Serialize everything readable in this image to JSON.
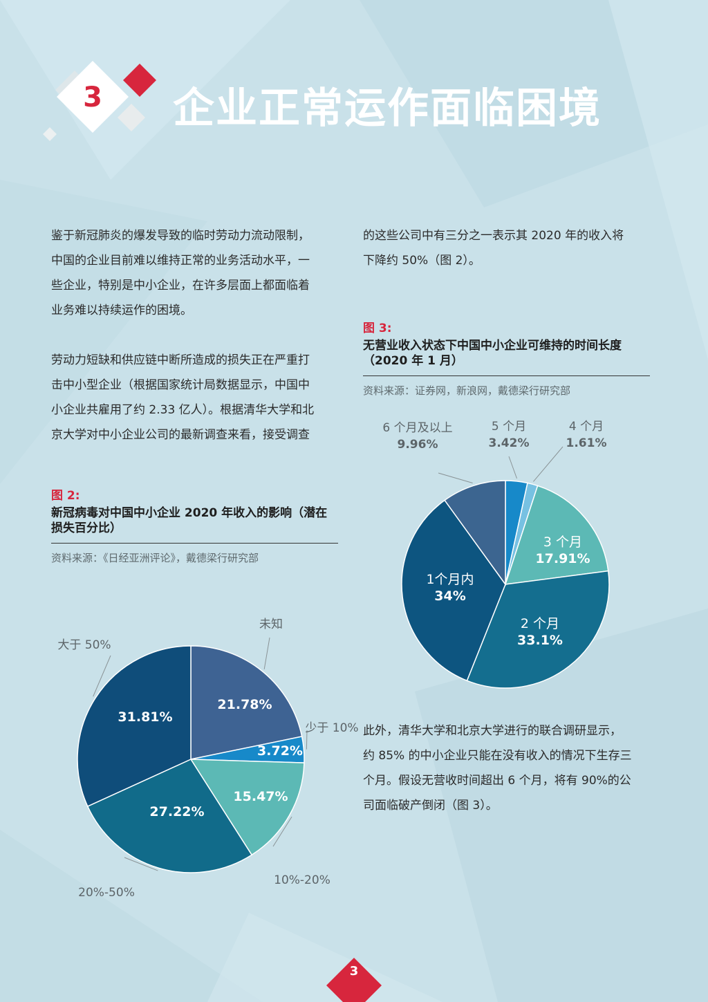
{
  "header": {
    "section_number": "3",
    "title": "企业正常运作面临困境"
  },
  "left_column": {
    "paragraph1": [
      "鉴于新冠肺炎的爆发导致的临时劳动力流动限制，",
      "中国的企业目前难以维持正常的业务活动水平，一",
      "些企业，特别是中小企业，在许多层面上都面临着",
      "业务难以持续运作的困境。"
    ],
    "paragraph2": [
      "劳动力短缺和供应链中断所造成的损失正在严重打",
      "击中小型企业（根据国家统计局数据显示，中国中",
      "小企业共雇用了约 2.33 亿人）。根据清华大学和北",
      "京大学对中小企业公司的最新调查来看，接受调查"
    ]
  },
  "right_column": {
    "paragraph1": [
      "的这些公司中有三分之一表示其 2020 年的收入将",
      "下降约 50%（图 2）。"
    ],
    "paragraph2": [
      "此外，清华大学和北京大学进行的联合调研显示，",
      "约 85% 的中小企业只能在没有收入的情况下生存三",
      "个月。假设无营收时间超出 6 个月，将有 90%的公",
      "司面临破产倒闭（图 3）。"
    ]
  },
  "figure2": {
    "number": "图 2:",
    "title_lines": [
      "新冠病毒对中国中小企业 2020 年收入的影响（潜在",
      "损失百分比）"
    ],
    "source": "资料来源：《日经亚洲评论》，戴德梁行研究部"
  },
  "figure3": {
    "number": "图 3:",
    "title_lines": [
      "无营业收入状态下中国中小企业可维持的时间长度",
      "（2020 年 1 月）"
    ],
    "source": "资料来源：证券网，新浪网，戴德梁行研究部"
  },
  "chart_data": [
    {
      "type": "pie",
      "title": "新冠病毒对中国中小企业 2020 年收入的影响（潜在损失百分比）",
      "start_angle_deg": 0,
      "slices": [
        {
          "label": "未知",
          "value": 21.78,
          "value_label": "21.78%",
          "color": "#3e6393"
        },
        {
          "label": "少于 10%",
          "value": 3.72,
          "value_label": "3.72%",
          "color": "#1789c9"
        },
        {
          "label": "10%-20%",
          "value": 15.47,
          "value_label": "15.47%",
          "color": "#5cb9b5"
        },
        {
          "label": "20%-50%",
          "value": 27.22,
          "value_label": "27.22%",
          "color": "#116b8a"
        },
        {
          "label": "大于 50%",
          "value": 31.81,
          "value_label": "31.81%",
          "color": "#0f4d7a"
        }
      ]
    },
    {
      "type": "pie",
      "title": "无营业收入状态下中国中小企业可维持的时间长度（2020 年 1 月）",
      "start_angle_deg": 0,
      "slices": [
        {
          "label": "5 个月",
          "value": 3.42,
          "value_label": "3.42%",
          "color": "#1789c9"
        },
        {
          "label": "4 个月",
          "value": 1.61,
          "value_label": "1.61%",
          "color": "#77c1e2"
        },
        {
          "label": "3 个月",
          "value": 17.91,
          "value_label": "17.91%",
          "color": "#5cb9b5"
        },
        {
          "label": "2 个月",
          "value": 33.1,
          "value_label": "33.1%",
          "color": "#146e8f"
        },
        {
          "label": "1个月内",
          "value": 34,
          "value_label": "34%",
          "color": "#0d5580"
        },
        {
          "label": "6 个月及以上",
          "value": 9.96,
          "value_label": "9.96%",
          "color": "#3c6590"
        }
      ]
    }
  ],
  "footer": {
    "page_number": "3"
  },
  "colors": {
    "accent": "#d7263d",
    "background": "#c9e1e9"
  }
}
